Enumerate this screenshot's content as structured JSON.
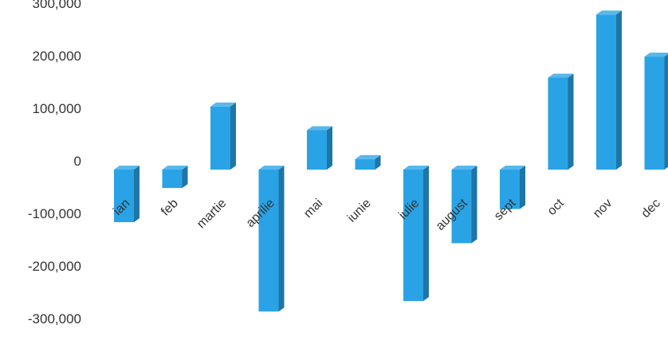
{
  "chart_data": {
    "type": "bar",
    "style": "3d-column",
    "categories": [
      "ian",
      "feb",
      "martie",
      "aprilie",
      "mai",
      "iunie",
      "iulie",
      "august",
      "sept",
      "oct",
      "nov",
      "dec"
    ],
    "values": [
      -100000,
      -35000,
      120000,
      -270000,
      75000,
      20000,
      -250000,
      -140000,
      -75000,
      175000,
      295000,
      215000
    ],
    "yticks": [
      "300,000",
      "200,000",
      "100,000",
      "0",
      "-100,000",
      "-200,000",
      "-300,000"
    ],
    "ylim": [
      -300000,
      300000
    ],
    "grid": false,
    "bar_color": "#29a3e6"
  }
}
